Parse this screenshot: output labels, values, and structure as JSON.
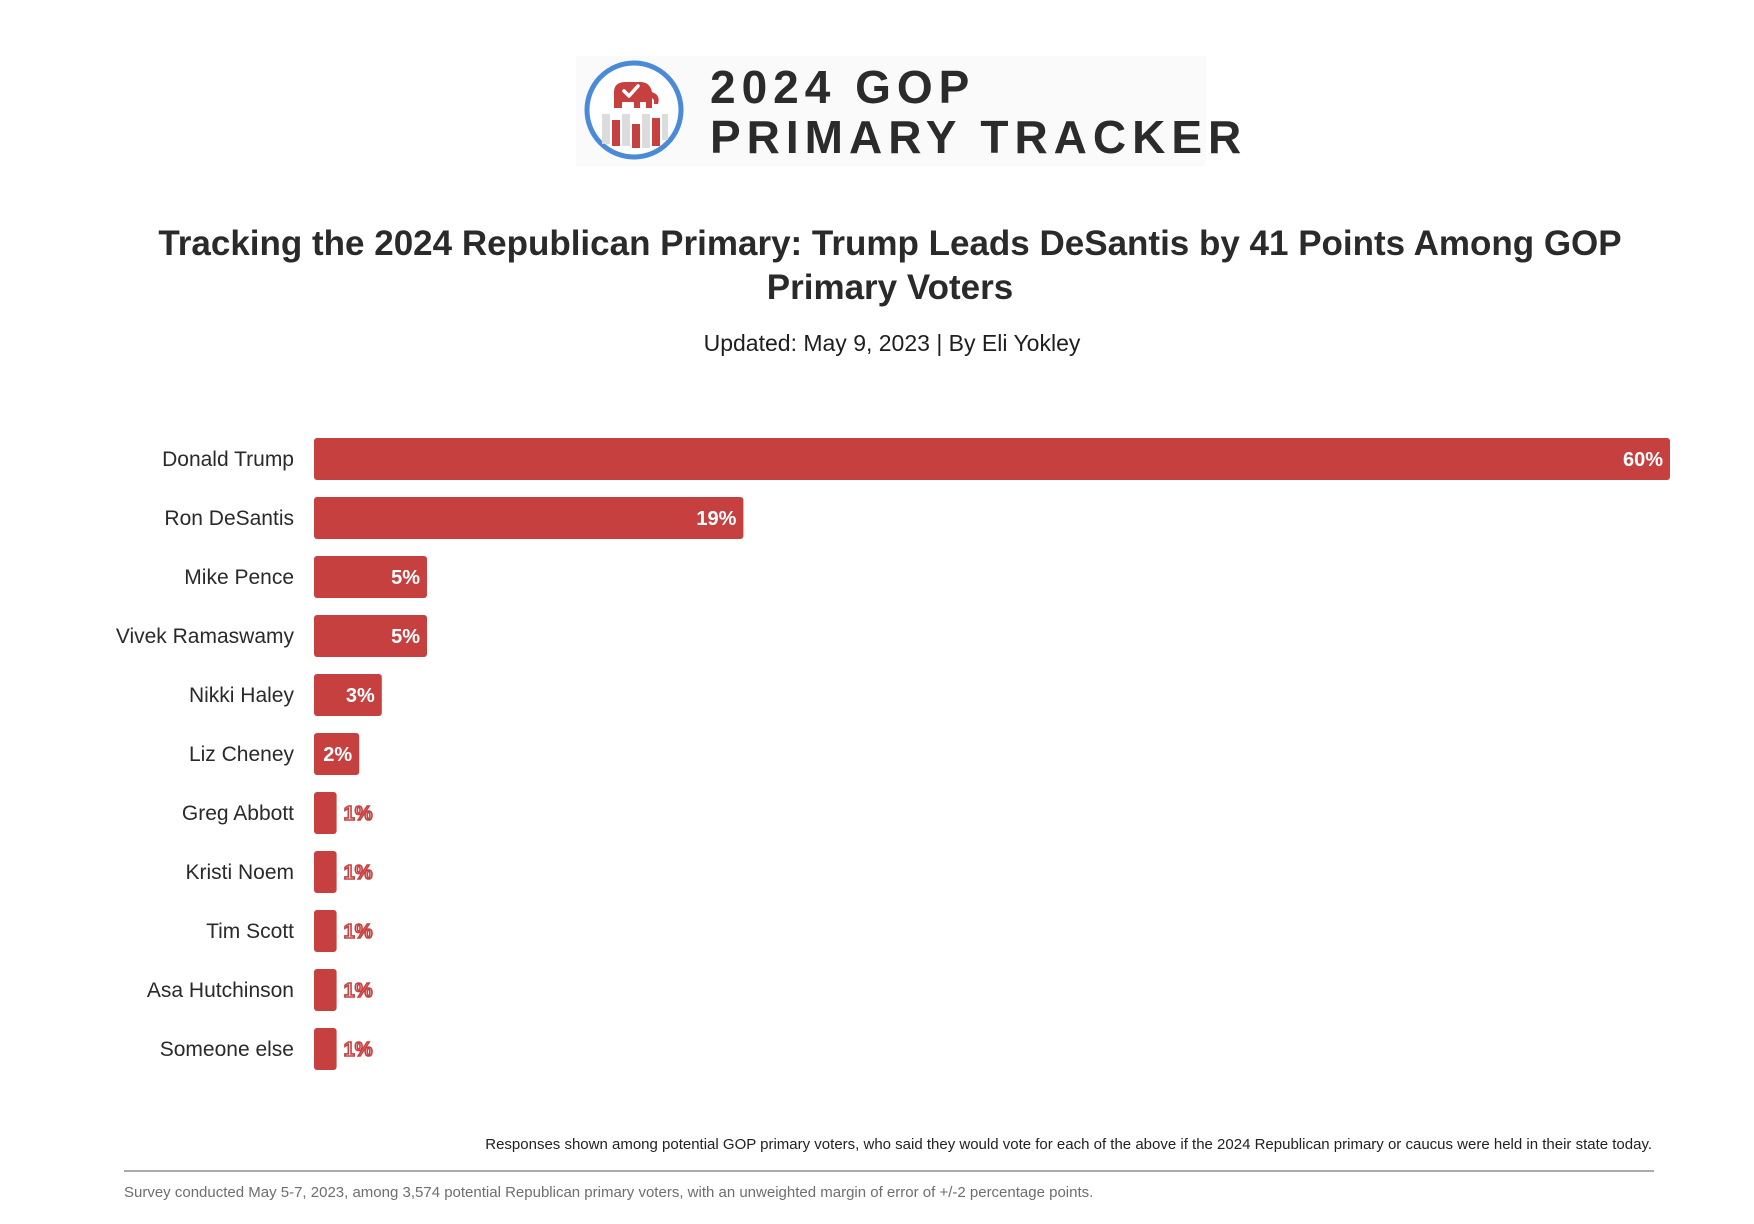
{
  "header": {
    "logo_line1": "2024 GOP",
    "logo_line2": "PRIMARY TRACKER"
  },
  "title": "Tracking the 2024 Republican Primary: Trump Leads DeSantis by 41 Points Among GOP Primary Voters",
  "byline": "Updated: May 9, 2023 | By Eli Yokley",
  "colors": {
    "bar": "#c64040",
    "logo_ring": "#4a8ad8",
    "logo_red": "#c64040"
  },
  "chart_data": {
    "type": "bar",
    "orientation": "horizontal",
    "categories": [
      "Donald Trump",
      "Ron DeSantis",
      "Mike Pence",
      "Vivek Ramaswamy",
      "Nikki Haley",
      "Liz Cheney",
      "Greg Abbott",
      "Kristi Noem",
      "Tim Scott",
      "Asa Hutchinson",
      "Someone else"
    ],
    "values": [
      60,
      19,
      5,
      5,
      3,
      2,
      1,
      1,
      1,
      1,
      1
    ],
    "labels": [
      "60%",
      "19%",
      "5%",
      "5%",
      "3%",
      "2%",
      "1%",
      "1%",
      "1%",
      "1%",
      "1%"
    ],
    "title": "Tracking the 2024 Republican Primary: Trump Leads DeSantis by 41 Points Among GOP Primary Voters",
    "xlabel": "",
    "ylabel": "",
    "xlim": [
      0,
      60
    ],
    "grid": false,
    "legend": "none"
  },
  "note": "Responses shown among potential GOP primary voters, who said they would vote for each of the above if the 2024 Republican primary or caucus were held in their state today.",
  "footer": "Survey conducted May 5-7, 2023, among 3,574 potential Republican primary voters, with an unweighted margin of error of +/-2 percentage points."
}
